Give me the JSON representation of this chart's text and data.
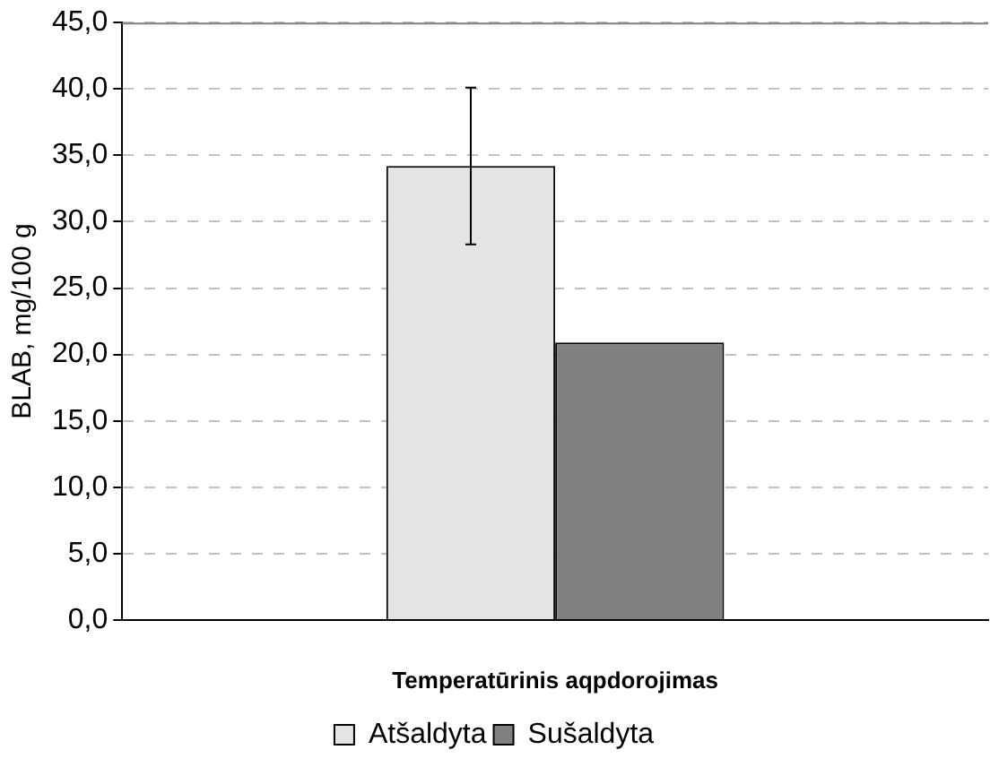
{
  "chart_data": {
    "type": "bar",
    "xlabel": "Temperatūrinis aqpdorojimas",
    "ylabel": "BLAB, mg/100 g",
    "categories": [
      null
    ],
    "series": [
      {
        "name": "Atšaldyta",
        "color": "#e4e4e4",
        "values": [
          34.2
        ],
        "errors": [
          5.9
        ]
      },
      {
        "name": "Sušaldyta",
        "color": "#808080",
        "values": [
          20.9
        ]
      }
    ],
    "ylim": [
      0,
      45
    ],
    "yticks": [
      {
        "value": 0,
        "label": "0,0"
      },
      {
        "value": 5,
        "label": "5,0"
      },
      {
        "value": 10,
        "label": "10,0"
      },
      {
        "value": 15,
        "label": "15,0"
      },
      {
        "value": 20,
        "label": "20,0"
      },
      {
        "value": 25,
        "label": "25,0"
      },
      {
        "value": 30,
        "label": "30,0"
      },
      {
        "value": 35,
        "label": "35,0"
      },
      {
        "value": 40,
        "label": "40,0"
      },
      {
        "value": 45,
        "label": "45,0"
      }
    ],
    "grid": "y",
    "legend": "bottom"
  }
}
